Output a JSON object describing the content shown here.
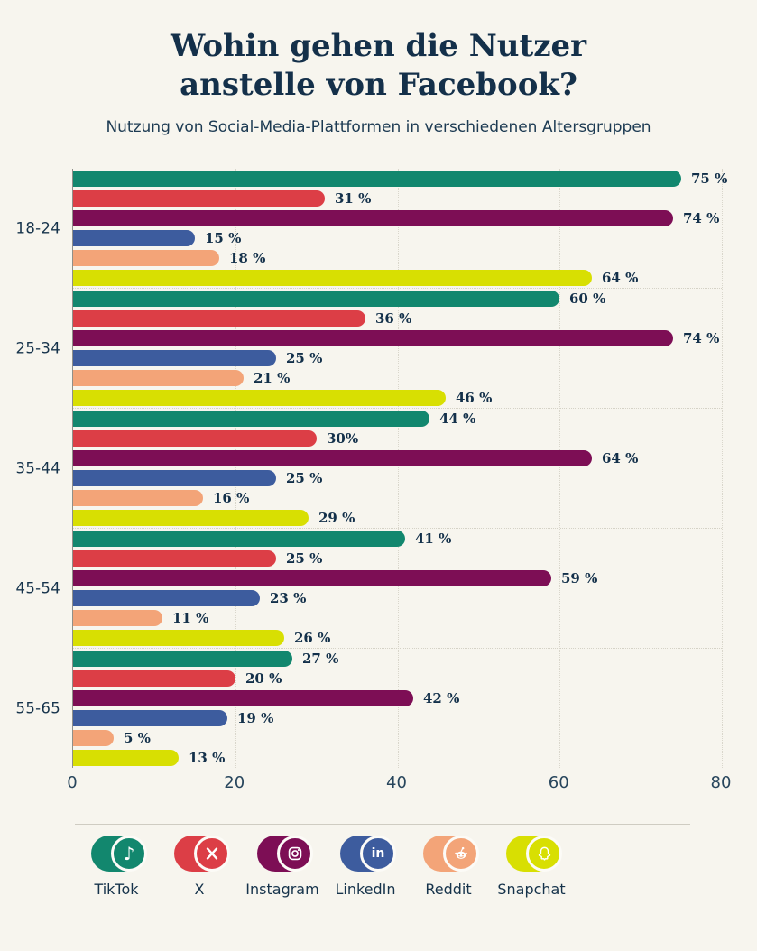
{
  "header": {
    "title_line1": "Wohin gehen die Nutzer",
    "title_line2": "anstelle von Facebook?",
    "subtitle": "Nutzung von Social-Media-Plattformen in verschiedenen Altersgruppen"
  },
  "chart_data": {
    "type": "bar",
    "orientation": "horizontal",
    "title": "Wohin gehen die Nutzer anstelle von Facebook?",
    "subtitle": "Nutzung von Social-Media-Plattformen in verschiedenen Altersgruppen",
    "categories": [
      "18-24",
      "25-34",
      "35-44",
      "45-54",
      "55-65"
    ],
    "series": [
      {
        "name": "TikTok",
        "color": "#12876E",
        "values": [
          75,
          60,
          44,
          41,
          27
        ],
        "labels": [
          "75 %",
          "60 %",
          "44 %",
          "41 %",
          "27 %"
        ]
      },
      {
        "name": "X",
        "color": "#DC3E46",
        "values": [
          31,
          36,
          30,
          25,
          20
        ],
        "labels": [
          "31 %",
          "36 %",
          "30%",
          "25 %",
          "20 %"
        ]
      },
      {
        "name": "Instagram",
        "color": "#7D0E55",
        "values": [
          74,
          74,
          64,
          59,
          42
        ],
        "labels": [
          "74 %",
          "74 %",
          "64 %",
          "59 %",
          "42 %"
        ]
      },
      {
        "name": "LinkedIn",
        "color": "#3D5C9E",
        "values": [
          15,
          25,
          25,
          23,
          19
        ],
        "labels": [
          "15 %",
          "25 %",
          "25 %",
          "23 %",
          "19 %"
        ]
      },
      {
        "name": "Reddit",
        "color": "#F3A478",
        "values": [
          18,
          21,
          16,
          11,
          5
        ],
        "labels": [
          "18 %",
          "21 %",
          "16 %",
          "11 %",
          "5 %"
        ]
      },
      {
        "name": "Snapchat",
        "color": "#D8DF02",
        "values": [
          64,
          46,
          29,
          26,
          13
        ],
        "labels": [
          "64 %",
          "46 %",
          "29 %",
          "26 %",
          "13 %"
        ]
      }
    ],
    "x_axis": {
      "ticks": [
        "0",
        "20",
        "40",
        "60",
        "80"
      ],
      "max": 80
    },
    "grid": "dotted vertical gridlines at 20/40/60/80, dotted separators between age groups",
    "legend_position": "bottom"
  },
  "legend": {
    "items": [
      {
        "label": "TikTok",
        "icon": "tiktok-icon",
        "color": "#12876E"
      },
      {
        "label": "X",
        "icon": "x-icon",
        "color": "#DC3E46"
      },
      {
        "label": "Instagram",
        "icon": "instagram-icon",
        "color": "#7D0E55"
      },
      {
        "label": "LinkedIn",
        "icon": "linkedin-icon",
        "color": "#3D5C9E"
      },
      {
        "label": "Reddit",
        "icon": "reddit-icon",
        "color": "#F3A478"
      },
      {
        "label": "Snapchat",
        "icon": "snapchat-icon",
        "color": "#D8DF02"
      }
    ]
  },
  "colors": {
    "background": "#F7F5EE",
    "title_text": "#14304A",
    "body_text": "#16334B",
    "axis_line": "#8F8F89",
    "gridline": "#D9D6CB"
  }
}
